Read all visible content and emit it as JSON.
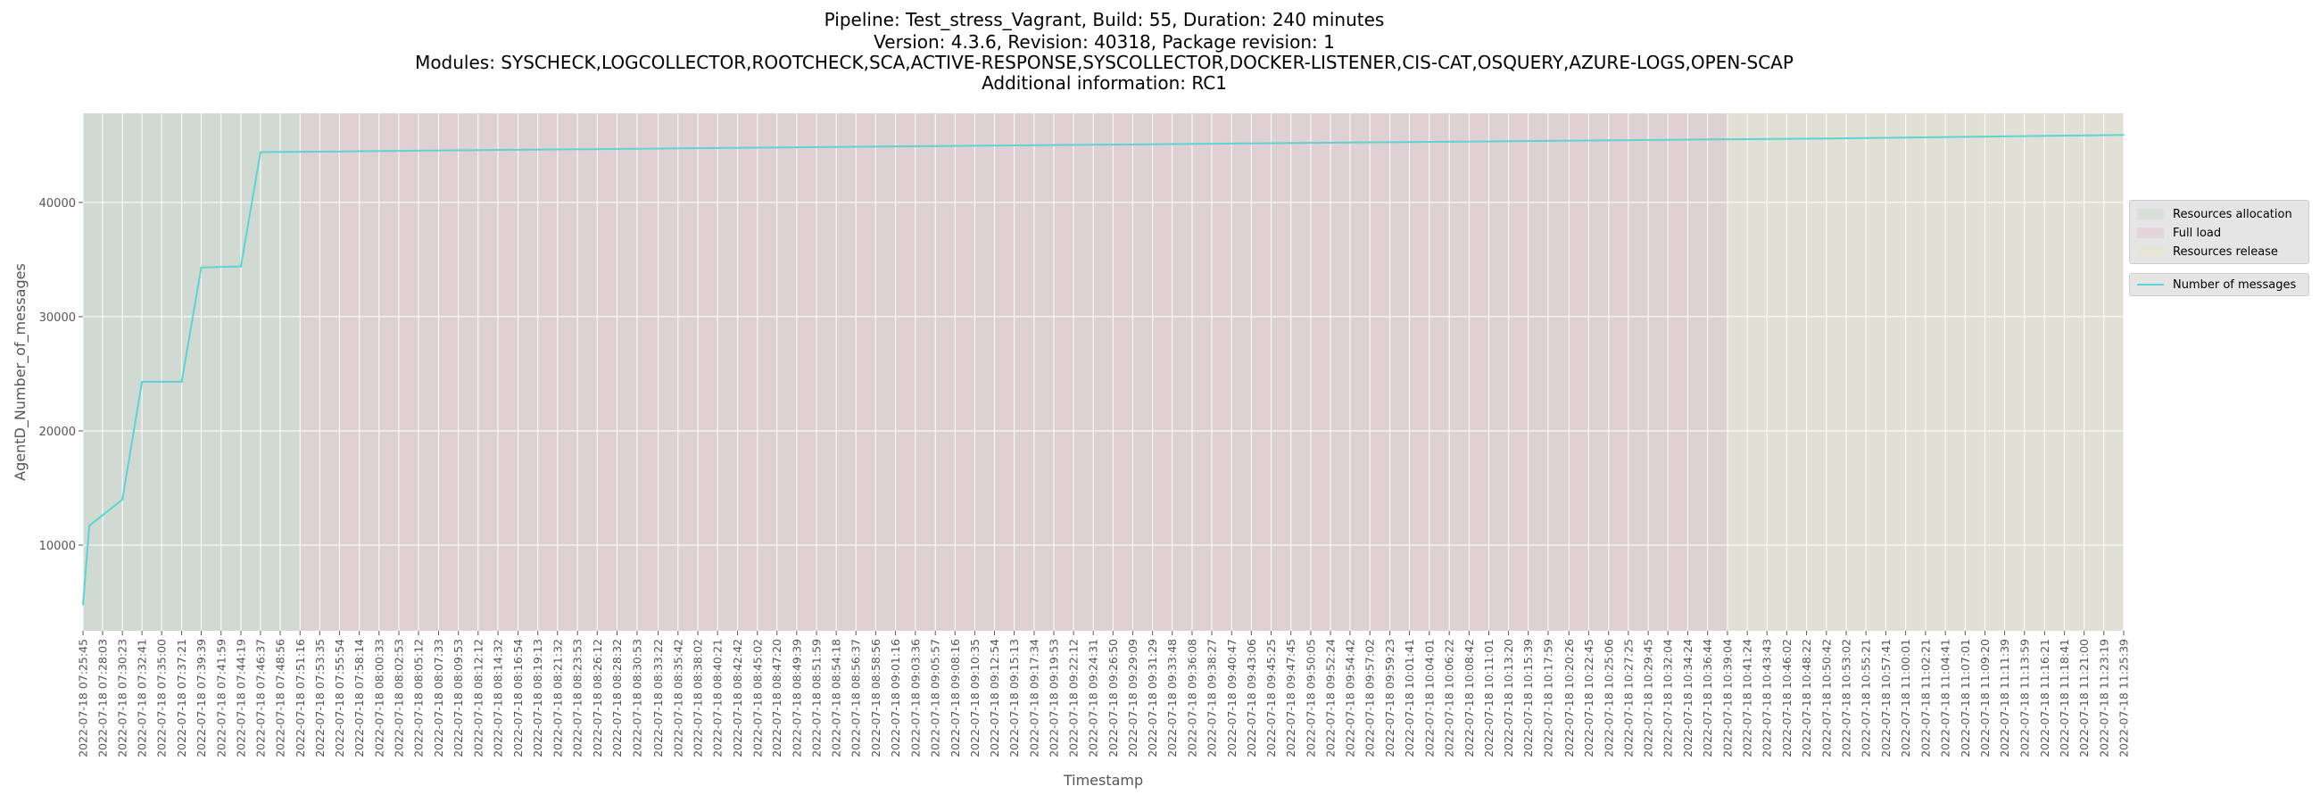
{
  "title_lines": [
    "Pipeline: Test_stress_Vagrant, Build: 55, Duration: 240 minutes",
    "Version: 4.3.6, Revision: 40318, Package revision: 1",
    "Modules: SYSCHECK,LOGCOLLECTOR,ROOTCHECK,SCA,ACTIVE-RESPONSE,SYSCOLLECTOR,DOCKER-LISTENER,CIS-CAT,OSQUERY,AZURE-LOGS,OPEN-SCAP",
    "Additional information: RC1"
  ],
  "legend": {
    "phases": [
      "Resources allocation",
      "Full load",
      "Resources release"
    ],
    "series": "Number of messages"
  },
  "chart_data": {
    "type": "line",
    "xlabel": "Timestamp",
    "ylabel": "AgentD_Number_of_messages",
    "ylim": [
      2500,
      47800
    ],
    "yticks": [
      10000,
      20000,
      30000,
      40000
    ],
    "grid": true,
    "legend_position": "right",
    "x_tick_labels": [
      "2022-07-18 07:25:45",
      "2022-07-18 07:28:03",
      "2022-07-18 07:30:23",
      "2022-07-18 07:32:41",
      "2022-07-18 07:35:00",
      "2022-07-18 07:37:21",
      "2022-07-18 07:39:39",
      "2022-07-18 07:41:59",
      "2022-07-18 07:44:19",
      "2022-07-18 07:46:37",
      "2022-07-18 07:48:56",
      "2022-07-18 07:51:16",
      "2022-07-18 07:53:35",
      "2022-07-18 07:55:54",
      "2022-07-18 07:58:14",
      "2022-07-18 08:00:33",
      "2022-07-18 08:02:53",
      "2022-07-18 08:05:12",
      "2022-07-18 08:07:33",
      "2022-07-18 08:09:53",
      "2022-07-18 08:12:12",
      "2022-07-18 08:14:32",
      "2022-07-18 08:16:54",
      "2022-07-18 08:19:13",
      "2022-07-18 08:21:32",
      "2022-07-18 08:23:53",
      "2022-07-18 08:26:12",
      "2022-07-18 08:28:32",
      "2022-07-18 08:30:53",
      "2022-07-18 08:33:22",
      "2022-07-18 08:35:42",
      "2022-07-18 08:38:02",
      "2022-07-18 08:40:21",
      "2022-07-18 08:42:42",
      "2022-07-18 08:45:02",
      "2022-07-18 08:47:20",
      "2022-07-18 08:49:39",
      "2022-07-18 08:51:59",
      "2022-07-18 08:54:18",
      "2022-07-18 08:56:37",
      "2022-07-18 08:58:56",
      "2022-07-18 09:01:16",
      "2022-07-18 09:03:36",
      "2022-07-18 09:05:57",
      "2022-07-18 09:08:16",
      "2022-07-18 09:10:35",
      "2022-07-18 09:12:54",
      "2022-07-18 09:15:13",
      "2022-07-18 09:17:34",
      "2022-07-18 09:19:53",
      "2022-07-18 09:22:12",
      "2022-07-18 09:24:31",
      "2022-07-18 09:26:50",
      "2022-07-18 09:29:09",
      "2022-07-18 09:31:29",
      "2022-07-18 09:33:48",
      "2022-07-18 09:36:08",
      "2022-07-18 09:38:27",
      "2022-07-18 09:40:47",
      "2022-07-18 09:43:06",
      "2022-07-18 09:45:25",
      "2022-07-18 09:47:45",
      "2022-07-18 09:50:05",
      "2022-07-18 09:52:24",
      "2022-07-18 09:54:42",
      "2022-07-18 09:57:02",
      "2022-07-18 09:59:23",
      "2022-07-18 10:01:41",
      "2022-07-18 10:04:01",
      "2022-07-18 10:06:22",
      "2022-07-18 10:08:42",
      "2022-07-18 10:11:01",
      "2022-07-18 10:13:20",
      "2022-07-18 10:15:39",
      "2022-07-18 10:17:59",
      "2022-07-18 10:20:26",
      "2022-07-18 10:22:45",
      "2022-07-18 10:25:06",
      "2022-07-18 10:27:25",
      "2022-07-18 10:29:45",
      "2022-07-18 10:32:04",
      "2022-07-18 10:34:24",
      "2022-07-18 10:36:44",
      "2022-07-18 10:39:04",
      "2022-07-18 10:41:24",
      "2022-07-18 10:43:43",
      "2022-07-18 10:46:02",
      "2022-07-18 10:48:22",
      "2022-07-18 10:50:42",
      "2022-07-18 10:53:02",
      "2022-07-18 10:55:21",
      "2022-07-18 10:57:41",
      "2022-07-18 11:00:01",
      "2022-07-18 11:02:21",
      "2022-07-18 11:04:41",
      "2022-07-18 11:07:01",
      "2022-07-18 11:09:20",
      "2022-07-18 11:11:39",
      "2022-07-18 11:13:59",
      "2022-07-18 11:16:21",
      "2022-07-18 11:18:41",
      "2022-07-18 11:21:00",
      "2022-07-18 11:23:19",
      "2022-07-18 11:25:39"
    ],
    "phases": [
      {
        "name": "Resources allocation",
        "start": "2022-07-18 07:25:45",
        "end": "2022-07-18 07:51:16",
        "color": "#a8c4b0"
      },
      {
        "name": "Full load",
        "start": "2022-07-18 07:51:16",
        "end": "2022-07-18 10:39:04",
        "color": "#d4aab3"
      },
      {
        "name": "Resources release",
        "start": "2022-07-18 10:39:04",
        "end": "2022-07-18 11:25:39",
        "color": "#d8d7b5"
      }
    ],
    "series": [
      {
        "name": "Number of messages",
        "color": "#5fd3d3",
        "points": [
          [
            "2022-07-18 07:25:45",
            4800
          ],
          [
            "2022-07-18 07:26:30",
            11700
          ],
          [
            "2022-07-18 07:30:23",
            14000
          ],
          [
            "2022-07-18 07:32:41",
            24300
          ],
          [
            "2022-07-18 07:37:21",
            24300
          ],
          [
            "2022-07-18 07:39:39",
            34300
          ],
          [
            "2022-07-18 07:44:19",
            34400
          ],
          [
            "2022-07-18 07:46:37",
            44400
          ],
          [
            "2022-07-18 08:30:53",
            44700
          ],
          [
            "2022-07-18 09:17:34",
            45000
          ],
          [
            "2022-07-18 10:04:01",
            45300
          ],
          [
            "2022-07-18 10:50:42",
            45600
          ],
          [
            "2022-07-18 11:25:39",
            45900
          ]
        ]
      }
    ]
  }
}
